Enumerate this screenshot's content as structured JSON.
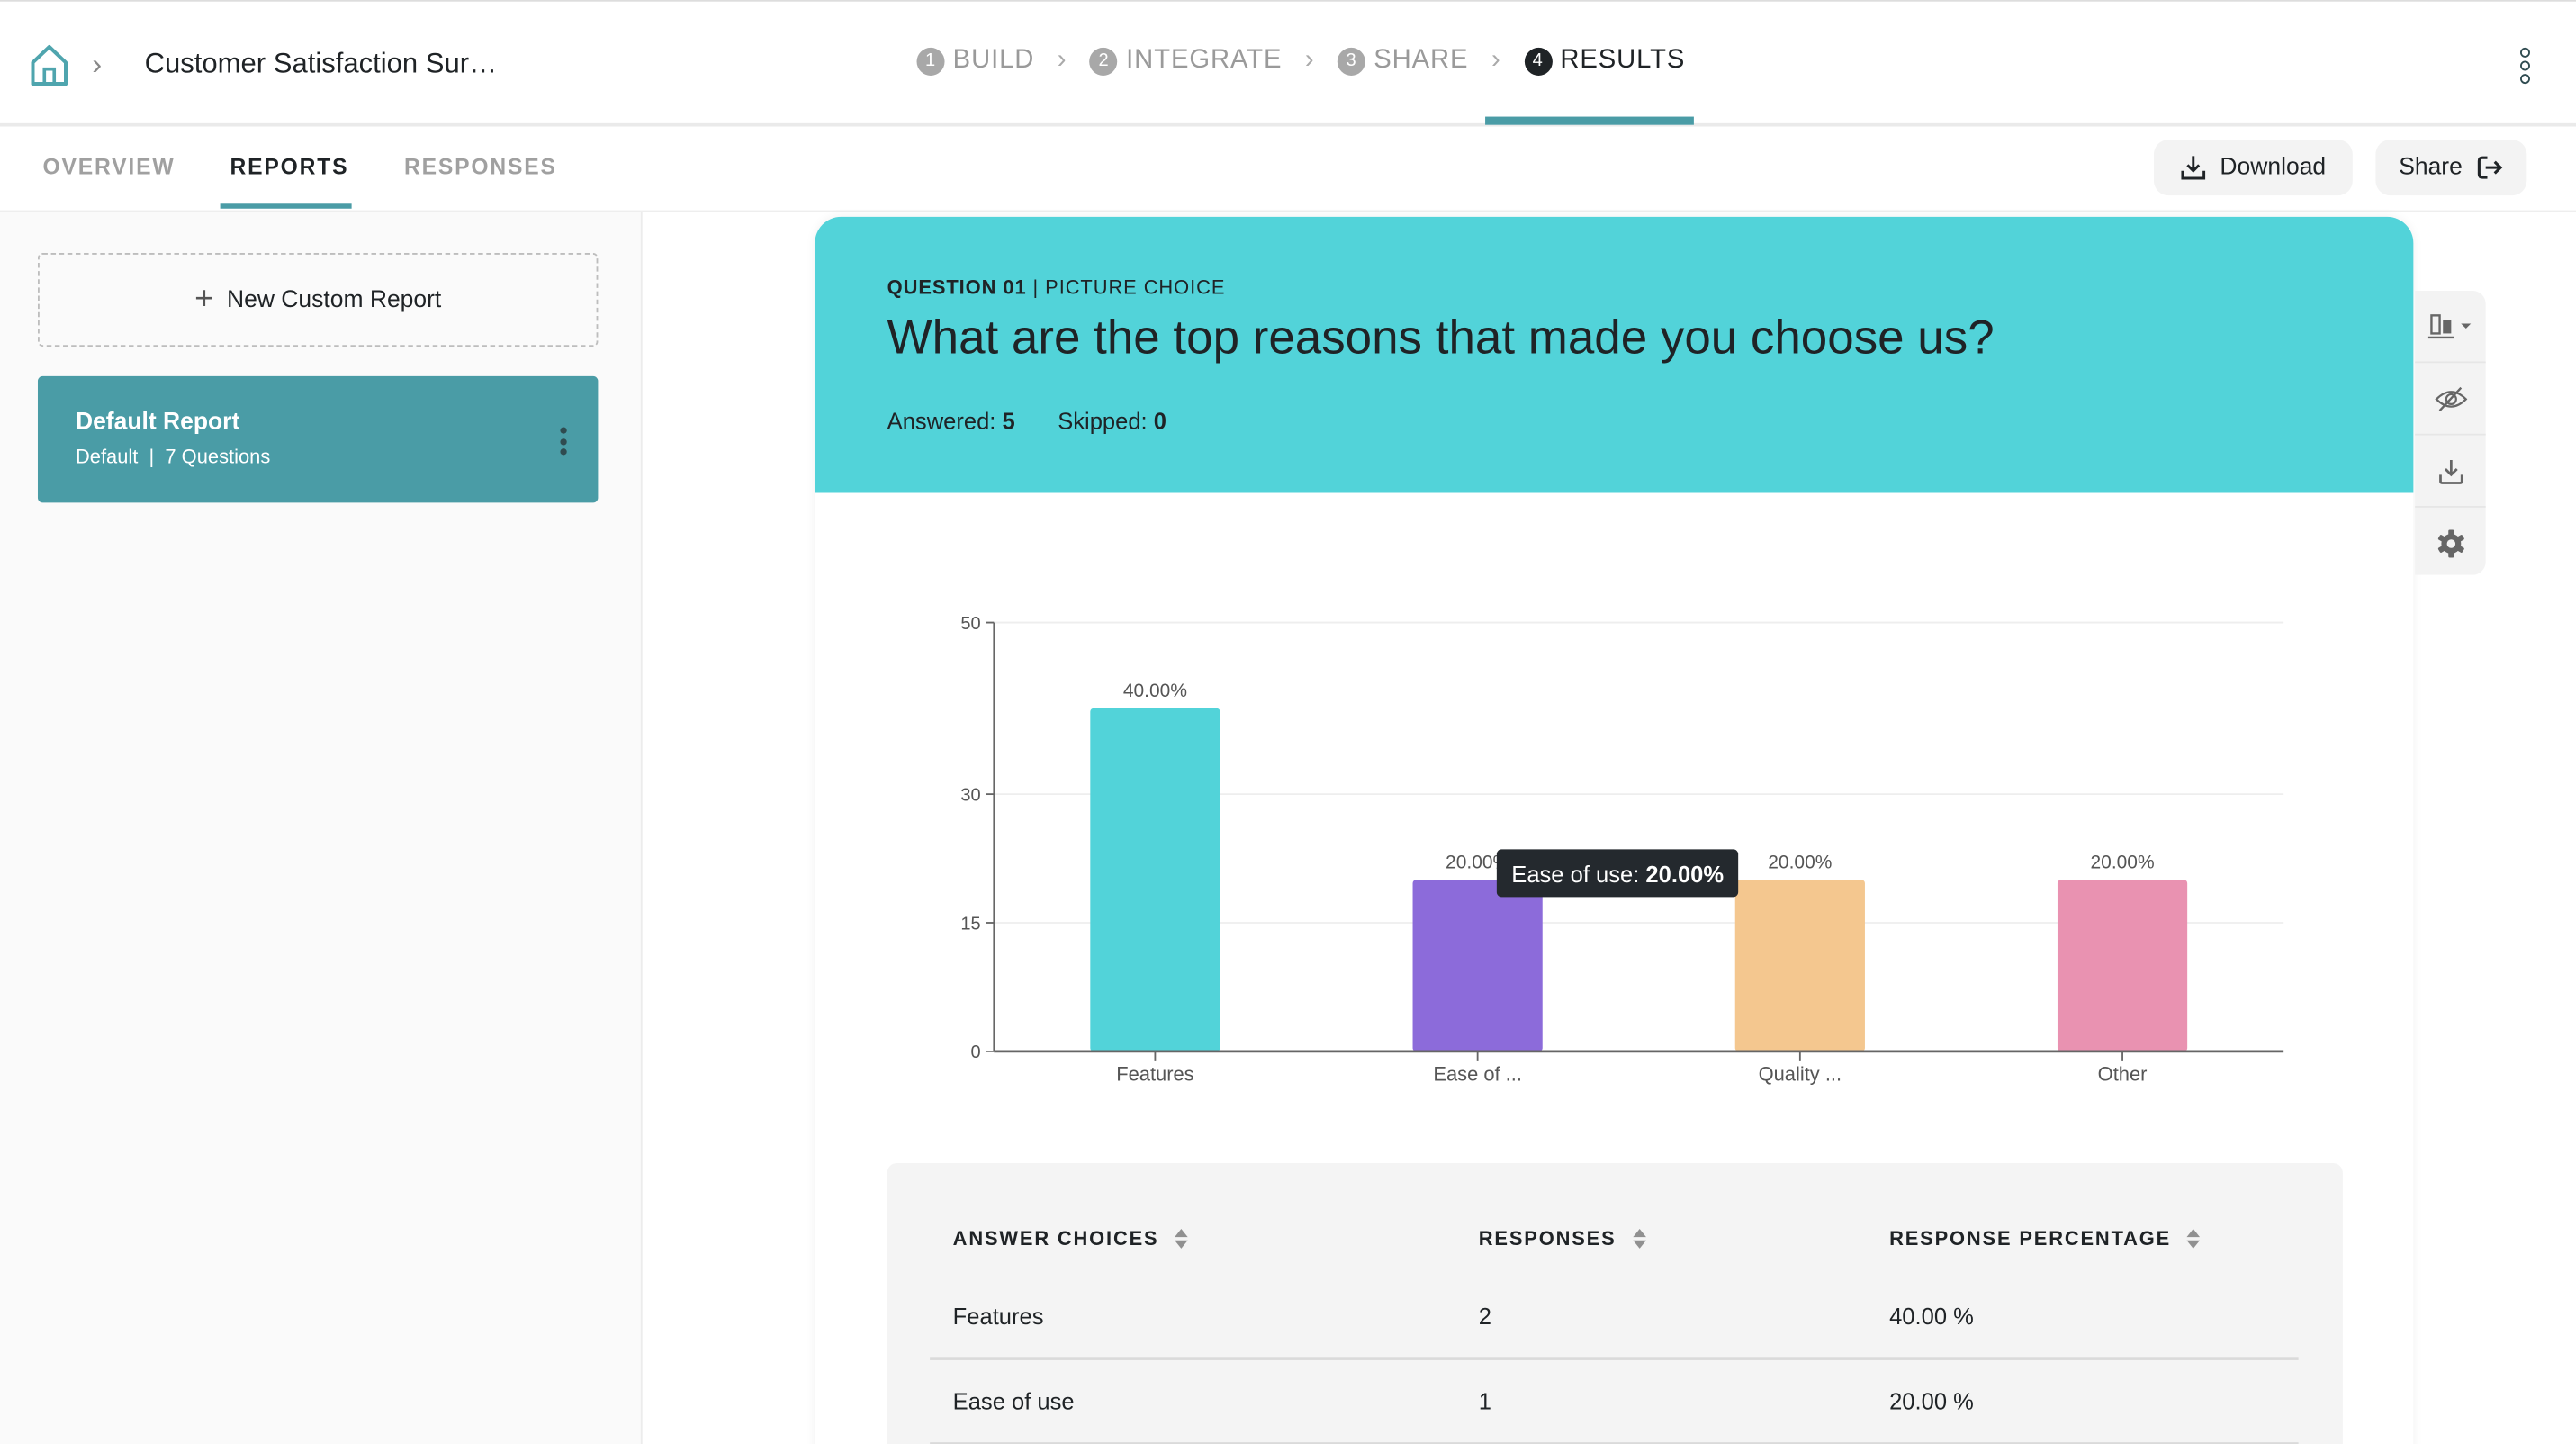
{
  "header": {
    "title": "Customer Satisfaction Sur…",
    "steps": [
      {
        "num": "1",
        "label": "BUILD"
      },
      {
        "num": "2",
        "label": "INTEGRATE"
      },
      {
        "num": "3",
        "label": "SHARE"
      },
      {
        "num": "4",
        "label": "RESULTS",
        "active": true
      }
    ]
  },
  "subnav": {
    "tabs": [
      {
        "label": "OVERVIEW"
      },
      {
        "label": "REPORTS",
        "active": true
      },
      {
        "label": "RESPONSES"
      }
    ],
    "download_label": "Download",
    "share_label": "Share"
  },
  "sidebar": {
    "new_report_label": "New Custom Report",
    "reports": [
      {
        "title": "Default Report",
        "type": "Default",
        "questions": "7 Questions"
      }
    ]
  },
  "question": {
    "number_label": "QUESTION 01",
    "type_label": "PICTURE CHOICE",
    "text": "What are the top reasons that made you choose us?",
    "answered_label": "Answered:",
    "answered": "5",
    "skipped_label": "Skipped:",
    "skipped": "0"
  },
  "tools": [
    "chart-type-icon",
    "hide-icon",
    "download-icon",
    "settings-icon"
  ],
  "tooltip": {
    "label": "Ease of use:",
    "value": "20.00%"
  },
  "chart_data": {
    "type": "bar",
    "categories": [
      "Features",
      "Ease of ...",
      "Quality ...",
      "Other"
    ],
    "values": [
      40,
      20,
      20,
      20
    ],
    "data_labels": [
      "40.00%",
      "20.00%",
      "20.00%",
      "20.00%"
    ],
    "colors": [
      "#52d3d9",
      "#8c6bda",
      "#f4c78f",
      "#e992b1"
    ],
    "yticks": [
      0,
      15,
      30,
      50
    ],
    "ylim": [
      0,
      50
    ],
    "grid": true
  },
  "table": {
    "headers": [
      "ANSWER CHOICES",
      "RESPONSES",
      "RESPONSE PERCENTAGE"
    ],
    "rows": [
      [
        "Features",
        "2",
        "40.00 %"
      ],
      [
        "Ease of use",
        "1",
        "20.00 %"
      ]
    ]
  },
  "colors": {
    "accent": "#4a9ca6",
    "question_header": "#52d3d9",
    "tooltip": "#24292e"
  }
}
